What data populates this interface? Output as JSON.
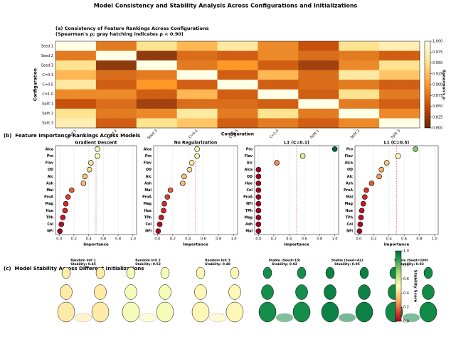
{
  "figure_title": "Model Consistency and Stability Analysis Across Configurations and Initializations",
  "section_b_title": "(b)  Feature Importance Rankings Across Models",
  "section_c_title": "(c)  Model Stability Across Different Initializations",
  "chart_data": [
    {
      "type": "heatmap",
      "title": "(a) Consistency of Feature Rankings Across Configurations",
      "subtitle": "(Spearman's ρ; gray hatching indicates ρ < 0.90)",
      "xlabel": "Configuration",
      "ylabel": "Configuration",
      "categories": [
        "Seed 1",
        "Seed 2",
        "Seed 3",
        "C=0.1",
        "C=0.5",
        "C=1.0",
        "Split 1",
        "Split 2",
        "Split 3"
      ],
      "values": [
        [
          1.0,
          0.88,
          0.95,
          0.92,
          0.96,
          0.89,
          0.85,
          0.95,
          0.97
        ],
        [
          0.88,
          1.0,
          0.82,
          0.87,
          0.86,
          0.89,
          0.87,
          0.88,
          0.86
        ],
        [
          0.95,
          0.82,
          1.0,
          0.88,
          0.9,
          0.86,
          0.83,
          0.89,
          0.95
        ],
        [
          0.92,
          0.87,
          0.88,
          1.0,
          0.86,
          0.92,
          0.87,
          0.96,
          0.93
        ],
        [
          0.96,
          0.86,
          0.9,
          0.86,
          1.0,
          0.86,
          0.87,
          0.88,
          0.86
        ],
        [
          0.89,
          0.89,
          0.86,
          0.92,
          0.86,
          1.0,
          0.86,
          0.95,
          0.88
        ],
        [
          0.85,
          0.87,
          0.83,
          0.87,
          0.87,
          0.86,
          1.0,
          0.88,
          0.86
        ],
        [
          0.95,
          0.88,
          0.89,
          0.96,
          0.88,
          0.95,
          0.88,
          1.0,
          0.89
        ],
        [
          0.97,
          0.86,
          0.95,
          0.93,
          0.86,
          0.88,
          0.86,
          0.89,
          1.0
        ]
      ],
      "hatch_below": 0.9,
      "colormap": "YlOrBr",
      "clim": [
        0.8,
        1.0
      ],
      "colorbar_label": "Spearman's ρ",
      "colorbar_ticks": [
        {
          "value": 0.8,
          "label": "0.800"
        },
        {
          "value": 0.825,
          "label": "0.825"
        },
        {
          "value": 0.85,
          "label": "0.850"
        },
        {
          "value": 0.875,
          "label": "0.875"
        },
        {
          "value": 0.9,
          "label": "0.900"
        },
        {
          "value": 0.925,
          "label": "0.925"
        },
        {
          "value": 0.95,
          "label": "0.950"
        },
        {
          "value": 0.975,
          "label": "0.975"
        },
        {
          "value": 1.0,
          "label": "1.000"
        }
      ]
    },
    {
      "type": "dot",
      "title": "Gradient Descent",
      "xlabel": "Importance",
      "categories": [
        "Alca",
        "Pro",
        "Flav",
        "OD",
        "Alc",
        "Ash",
        "Mal",
        "ProA",
        "Mag",
        "Hue",
        "TPh",
        "Col",
        "NFl"
      ],
      "values": [
        0.52,
        0.52,
        0.43,
        0.41,
        0.35,
        0.33,
        0.17,
        0.12,
        0.09,
        0.08,
        0.05,
        0.03,
        0.01
      ],
      "threshold": 0.5,
      "colormap": "RdYlGn",
      "xlim": [
        -0.05,
        1.05
      ],
      "grid": true,
      "xticks": [
        {
          "value": 0,
          "label": "0.0"
        },
        {
          "value": 0.2,
          "label": "0.2"
        },
        {
          "value": 0.4,
          "label": "0.4"
        },
        {
          "value": 0.6,
          "label": "0.6"
        },
        {
          "value": 0.8,
          "label": "0.8"
        },
        {
          "value": 1,
          "label": "1.0"
        }
      ]
    },
    {
      "type": "dot",
      "title": "No Regularization",
      "xlabel": "Importance",
      "categories": [
        "Alca",
        "Pro",
        "Flav",
        "OD",
        "Alc",
        "Ash",
        "Mal",
        "ProA",
        "Mag",
        "Hue",
        "TPh",
        "Col",
        "NFl"
      ],
      "values": [
        0.52,
        0.52,
        0.45,
        0.42,
        0.35,
        0.33,
        0.17,
        0.13,
        0.09,
        0.08,
        0.05,
        0.03,
        0.01
      ],
      "threshold": 0.5,
      "colormap": "RdYlGn",
      "xlim": [
        -0.05,
        1.05
      ],
      "grid": true,
      "xticks": [
        {
          "value": 0,
          "label": "0.0"
        },
        {
          "value": 0.2,
          "label": "0.2"
        },
        {
          "value": 0.4,
          "label": "0.4"
        },
        {
          "value": 0.6,
          "label": "0.6"
        },
        {
          "value": 0.8,
          "label": "0.8"
        },
        {
          "value": 1,
          "label": "1.0"
        }
      ]
    },
    {
      "type": "dot",
      "title": "L1 (C=0.1)",
      "xlabel": "Importance",
      "categories": [
        "Pro",
        "Flav",
        "Alc",
        "Alca",
        "OD",
        "Hue",
        "Col",
        "ProA",
        "NFl",
        "TPh",
        "Mag",
        "Ash",
        "Mal"
      ],
      "values": [
        1.0,
        0.58,
        0.24,
        0,
        0,
        0,
        0,
        0,
        0,
        0,
        0,
        0,
        0
      ],
      "threshold": 0.5,
      "colormap": "RdYlGn",
      "xlim": [
        -0.05,
        1.05
      ],
      "grid": true,
      "xticks": [
        {
          "value": 0,
          "label": "0.0"
        },
        {
          "value": 0.2,
          "label": "0.2"
        },
        {
          "value": 0.4,
          "label": "0.4"
        },
        {
          "value": 0.6,
          "label": "0.6"
        },
        {
          "value": 0.8,
          "label": "0.8"
        },
        {
          "value": 1,
          "label": "1.0"
        }
      ]
    },
    {
      "type": "dot",
      "title": "L1 (C=0.5)",
      "xlabel": "Importance",
      "categories": [
        "Pro",
        "Flav",
        "Alca",
        "OD",
        "Alc",
        "Ash",
        "ProA",
        "Mal",
        "Mag",
        "Hue",
        "TPh",
        "Col",
        "NFl"
      ],
      "values": [
        0.75,
        0.52,
        0.37,
        0.3,
        0.27,
        0.17,
        0.1,
        0.08,
        0.06,
        0.04,
        0.03,
        0.02,
        0.01
      ],
      "threshold": 0.5,
      "colormap": "RdYlGn",
      "xlim": [
        -0.05,
        1.05
      ],
      "grid": true,
      "xticks": [
        {
          "value": 0,
          "label": "0.0"
        },
        {
          "value": 0.2,
          "label": "0.2"
        },
        {
          "value": 0.4,
          "label": "0.4"
        },
        {
          "value": 0.6,
          "label": "0.6"
        },
        {
          "value": 0.8,
          "label": "0.8"
        },
        {
          "value": 1,
          "label": "1.0"
        }
      ]
    },
    {
      "type": "stability",
      "title": "Random Init 1",
      "stability": 0.45,
      "stability_label": "Stability: 0.45",
      "colormap": "RdYlGn"
    },
    {
      "type": "stability",
      "title": "Random Init 2",
      "stability": 0.52,
      "stability_label": "Stability: 0.52",
      "colormap": "RdYlGn"
    },
    {
      "type": "stability",
      "title": "Random Init 3",
      "stability": 0.48,
      "stability_label": "Stability: 0.48",
      "colormap": "RdYlGn"
    },
    {
      "type": "stability",
      "title": "Stable (Seed=15)",
      "stability": 0.92,
      "stability_label": "Stability: 0.92",
      "colormap": "RdYlGn"
    },
    {
      "type": "stability",
      "title": "Stable (Seed=42)",
      "stability": 0.95,
      "stability_label": "Stability: 0.95",
      "colormap": "RdYlGn"
    },
    {
      "type": "stability",
      "title": "Stable (Seed=100)",
      "stability": 0.93,
      "stability_label": "Stability: 0.93",
      "colormap": "RdYlGn"
    },
    {
      "type": "colorbar",
      "label": "Stability Score",
      "colormap": "RdYlGn",
      "clim": [
        0,
        1
      ],
      "ticks": [
        {
          "value": 0,
          "label": "0.0"
        },
        {
          "value": 0.2,
          "label": "0.2"
        },
        {
          "value": 0.4,
          "label": "0.4"
        },
        {
          "value": 0.6,
          "label": "0.6"
        },
        {
          "value": 0.8,
          "label": "0.8"
        },
        {
          "value": 1,
          "label": "1.0"
        }
      ]
    }
  ]
}
